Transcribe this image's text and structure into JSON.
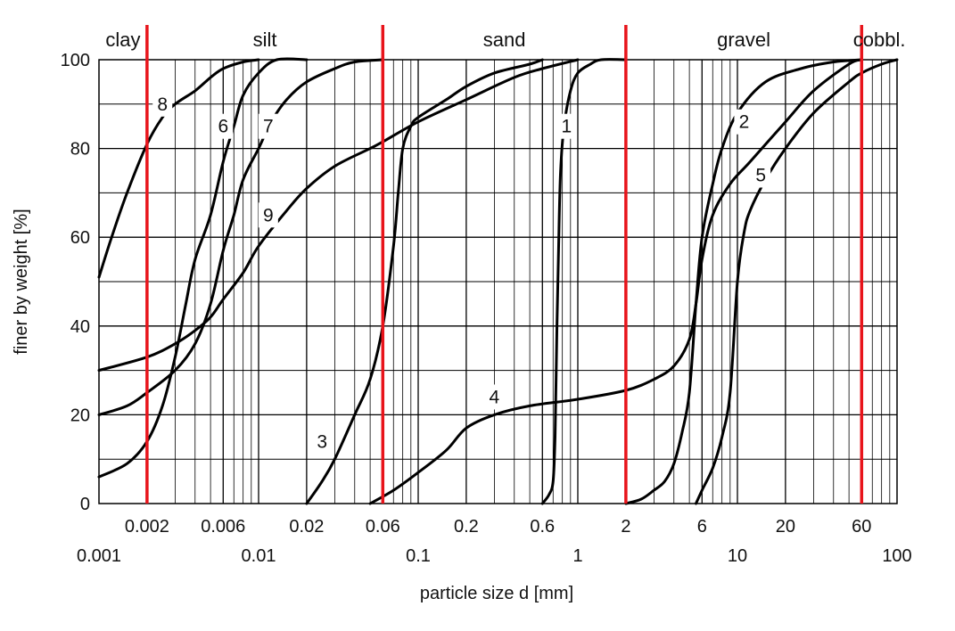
{
  "chart_data": {
    "type": "line",
    "x_scale": "log",
    "xlim": [
      0.001,
      100
    ],
    "ylim": [
      0,
      100
    ],
    "xlabel": "particle size d [mm]",
    "ylabel": "finer by weight [%]",
    "y_ticks": [
      "0",
      "20",
      "40",
      "60",
      "80",
      "100"
    ],
    "x_ticks_upper": [
      {
        "value": 0.002,
        "label": "0.002"
      },
      {
        "value": 0.006,
        "label": "0.006"
      },
      {
        "value": 0.02,
        "label": "0.02"
      },
      {
        "value": 0.06,
        "label": "0.06"
      },
      {
        "value": 0.2,
        "label": "0.2"
      },
      {
        "value": 0.6,
        "label": "0.6"
      },
      {
        "value": 2,
        "label": "2"
      },
      {
        "value": 6,
        "label": "6"
      },
      {
        "value": 20,
        "label": "20"
      },
      {
        "value": 60,
        "label": "60"
      }
    ],
    "x_ticks_lower": [
      {
        "value": 0.001,
        "label": "0.001"
      },
      {
        "value": 0.01,
        "label": "0.01"
      },
      {
        "value": 0.1,
        "label": "0.1"
      },
      {
        "value": 1,
        "label": "1"
      },
      {
        "value": 10,
        "label": "10"
      },
      {
        "value": 100,
        "label": "100"
      }
    ],
    "grid": true,
    "colors": {
      "curves": "#000000",
      "boundaries": "#e8141b",
      "grid": "#000000"
    },
    "zones": [
      {
        "name": "clay",
        "from": 0.001,
        "to": 0.002
      },
      {
        "name": "silt",
        "from": 0.002,
        "to": 0.06
      },
      {
        "name": "sand",
        "from": 0.06,
        "to": 2
      },
      {
        "name": "gravel",
        "from": 2,
        "to": 60
      },
      {
        "name": "cobbl.",
        "from": 60,
        "to": 100
      }
    ],
    "boundaries": [
      0.002,
      0.06,
      2,
      60
    ],
    "series": [
      {
        "name": "1",
        "label_at": [
          0.85,
          85
        ],
        "points": [
          [
            0.6,
            0
          ],
          [
            0.66,
            2
          ],
          [
            0.7,
            5
          ],
          [
            0.72,
            15
          ],
          [
            0.74,
            40
          ],
          [
            0.76,
            60
          ],
          [
            0.78,
            75
          ],
          [
            0.82,
            85
          ],
          [
            0.9,
            93
          ],
          [
            1.0,
            97
          ],
          [
            1.2,
            99
          ],
          [
            1.4,
            100
          ],
          [
            2,
            100
          ]
        ]
      },
      {
        "name": "2",
        "label_at": [
          11,
          86
        ],
        "points": [
          [
            2,
            0
          ],
          [
            2.5,
            1
          ],
          [
            3,
            3
          ],
          [
            3.5,
            5
          ],
          [
            4,
            9
          ],
          [
            4.5,
            16
          ],
          [
            5,
            25
          ],
          [
            5.5,
            45
          ],
          [
            6,
            60
          ],
          [
            7,
            72
          ],
          [
            8,
            80
          ],
          [
            10,
            88
          ],
          [
            15,
            95
          ],
          [
            25,
            98
          ],
          [
            40,
            99.5
          ],
          [
            60,
            100
          ]
        ]
      },
      {
        "name": "3",
        "label_at": [
          0.025,
          14
        ],
        "points": [
          [
            0.02,
            0
          ],
          [
            0.025,
            5
          ],
          [
            0.03,
            10
          ],
          [
            0.04,
            20
          ],
          [
            0.05,
            28
          ],
          [
            0.06,
            40
          ],
          [
            0.07,
            58
          ],
          [
            0.075,
            70
          ],
          [
            0.08,
            80
          ],
          [
            0.09,
            85
          ],
          [
            0.1,
            87
          ],
          [
            0.15,
            91
          ],
          [
            0.2,
            94
          ],
          [
            0.3,
            97
          ],
          [
            0.5,
            99
          ],
          [
            0.6,
            100
          ]
        ]
      },
      {
        "name": "4",
        "label_at": [
          0.3,
          24
        ],
        "points": [
          [
            0.05,
            0
          ],
          [
            0.07,
            3
          ],
          [
            0.1,
            7
          ],
          [
            0.15,
            12
          ],
          [
            0.2,
            17
          ],
          [
            0.3,
            20
          ],
          [
            0.5,
            22
          ],
          [
            1,
            23.5
          ],
          [
            2,
            25.5
          ],
          [
            3,
            28
          ],
          [
            4,
            31
          ],
          [
            5,
            37
          ],
          [
            5.5,
            45
          ],
          [
            6,
            55
          ],
          [
            7,
            65
          ],
          [
            9,
            72
          ],
          [
            12,
            77
          ],
          [
            20,
            86
          ],
          [
            30,
            93
          ],
          [
            50,
            99
          ],
          [
            60,
            100
          ]
        ]
      },
      {
        "name": "5",
        "label_at": [
          14,
          74
        ],
        "points": [
          [
            5.5,
            0
          ],
          [
            6,
            3
          ],
          [
            7,
            8
          ],
          [
            8,
            15
          ],
          [
            9,
            25
          ],
          [
            10,
            50
          ],
          [
            11,
            61
          ],
          [
            12,
            66
          ],
          [
            15,
            73
          ],
          [
            20,
            80
          ],
          [
            30,
            88
          ],
          [
            50,
            95
          ],
          [
            60,
            97
          ],
          [
            80,
            99
          ],
          [
            100,
            100
          ]
        ]
      },
      {
        "name": "6",
        "label_at": [
          0.006,
          85
        ],
        "points": [
          [
            0.001,
            6
          ],
          [
            0.0015,
            9
          ],
          [
            0.002,
            14
          ],
          [
            0.0025,
            22
          ],
          [
            0.003,
            33
          ],
          [
            0.0035,
            45
          ],
          [
            0.004,
            55
          ],
          [
            0.005,
            65
          ],
          [
            0.006,
            77
          ],
          [
            0.007,
            85
          ],
          [
            0.008,
            92
          ],
          [
            0.01,
            97
          ],
          [
            0.013,
            100
          ],
          [
            0.02,
            100
          ]
        ]
      },
      {
        "name": "7",
        "label_at": [
          0.0115,
          85
        ],
        "points": [
          [
            0.001,
            20
          ],
          [
            0.0015,
            22
          ],
          [
            0.002,
            25
          ],
          [
            0.003,
            30
          ],
          [
            0.004,
            36
          ],
          [
            0.005,
            45
          ],
          [
            0.006,
            57
          ],
          [
            0.007,
            65
          ],
          [
            0.008,
            73
          ],
          [
            0.01,
            80
          ],
          [
            0.012,
            86
          ],
          [
            0.015,
            91
          ],
          [
            0.02,
            95
          ],
          [
            0.03,
            98
          ],
          [
            0.04,
            99.5
          ],
          [
            0.06,
            100
          ]
        ]
      },
      {
        "name": "8",
        "label_at": [
          0.0025,
          90
        ],
        "points": [
          [
            0.001,
            51
          ],
          [
            0.0012,
            60
          ],
          [
            0.0015,
            70
          ],
          [
            0.002,
            81
          ],
          [
            0.0025,
            87
          ],
          [
            0.003,
            90
          ],
          [
            0.004,
            93
          ],
          [
            0.005,
            96
          ],
          [
            0.006,
            98
          ],
          [
            0.008,
            99.5
          ],
          [
            0.01,
            100
          ]
        ]
      },
      {
        "name": "9",
        "label_at": [
          0.0115,
          65
        ],
        "points": [
          [
            0.001,
            30
          ],
          [
            0.002,
            33
          ],
          [
            0.003,
            36
          ],
          [
            0.004,
            39
          ],
          [
            0.005,
            42
          ],
          [
            0.006,
            46
          ],
          [
            0.008,
            52
          ],
          [
            0.01,
            58
          ],
          [
            0.015,
            66
          ],
          [
            0.02,
            71
          ],
          [
            0.03,
            76
          ],
          [
            0.05,
            80
          ],
          [
            0.06,
            81.5
          ],
          [
            0.1,
            86
          ],
          [
            0.2,
            91
          ],
          [
            0.4,
            96
          ],
          [
            0.6,
            98
          ],
          [
            1,
            100
          ]
        ]
      }
    ]
  }
}
